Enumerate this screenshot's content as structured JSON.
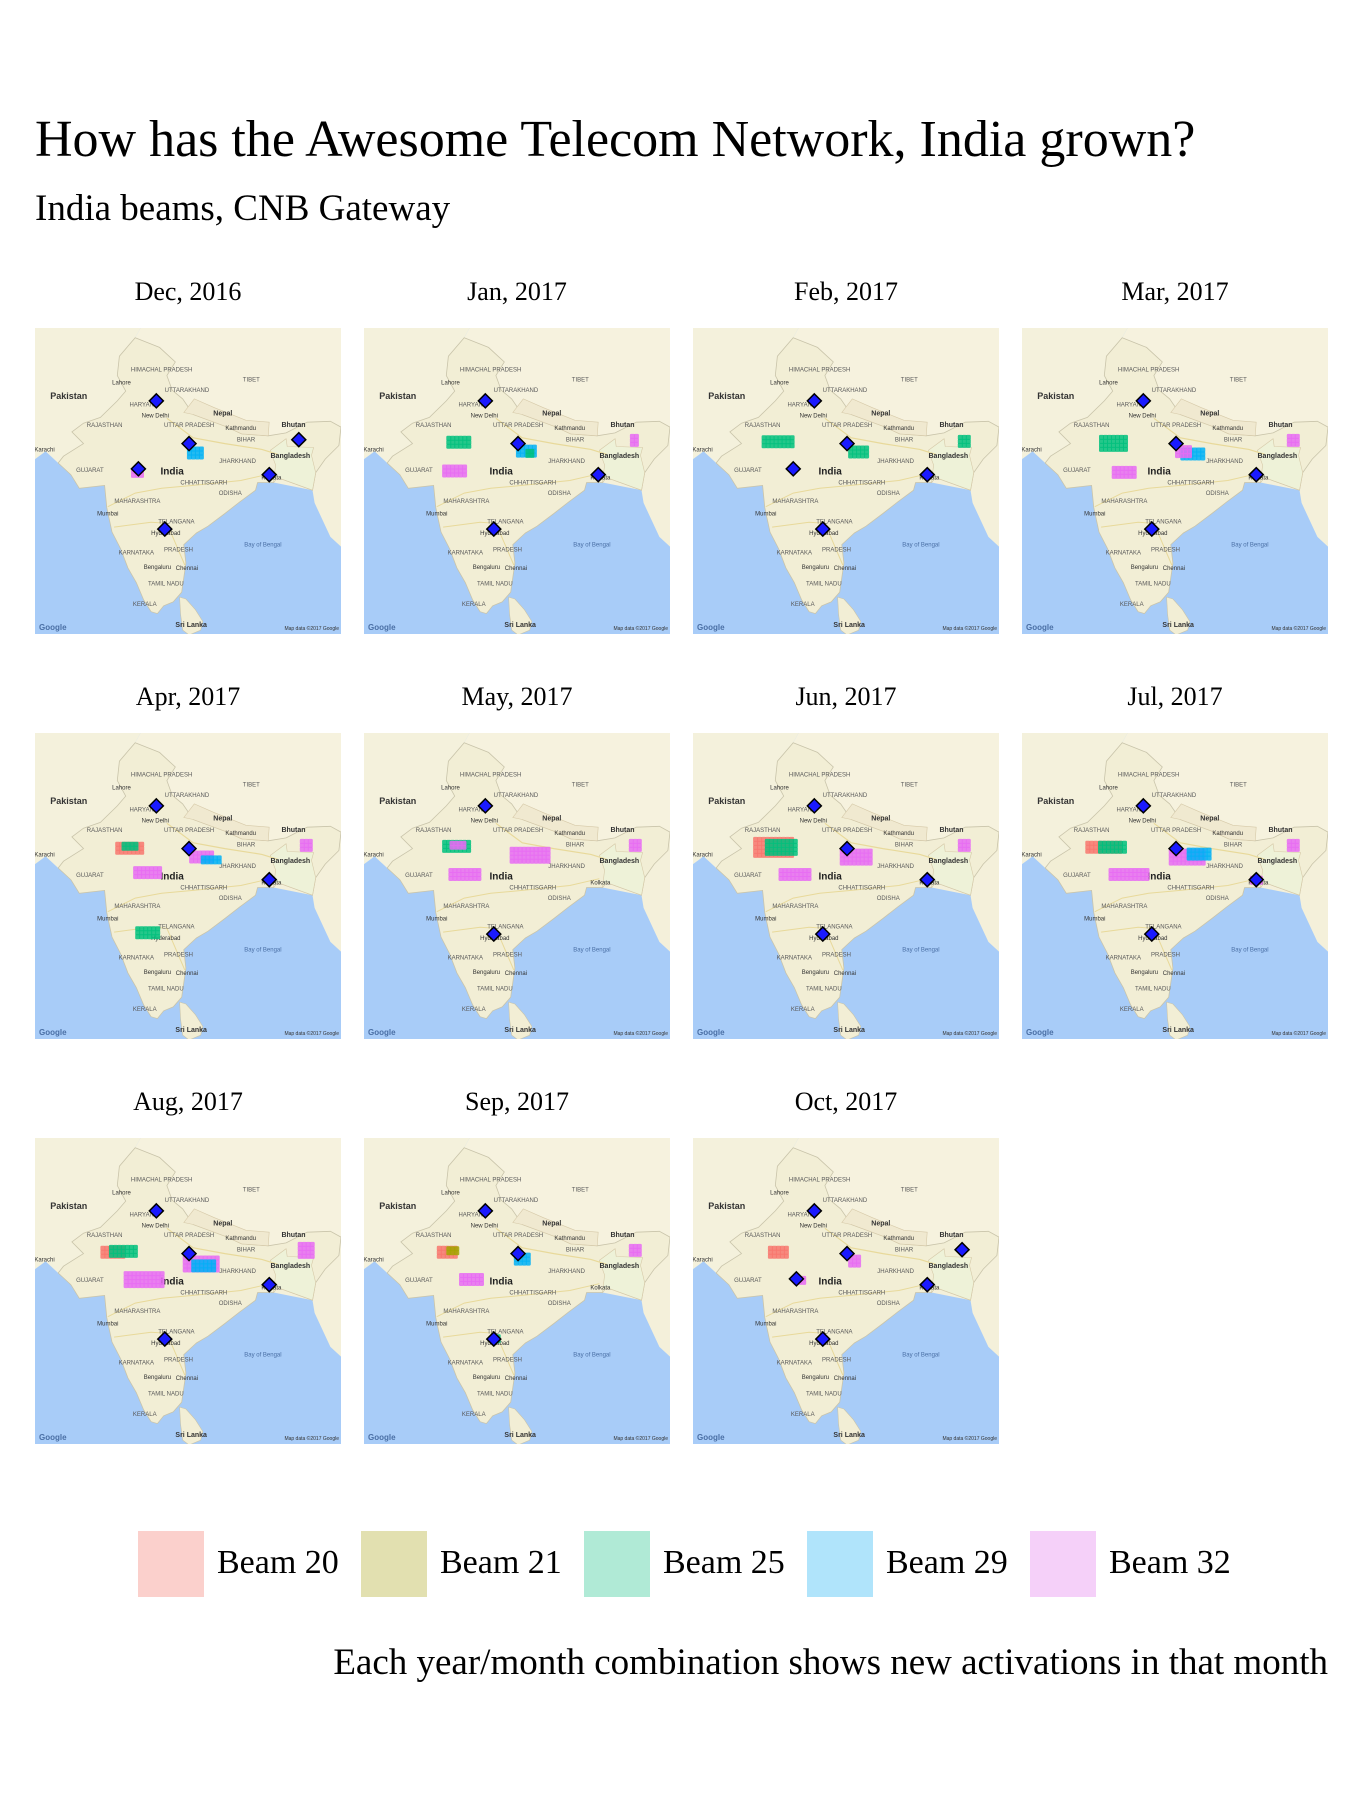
{
  "title": "How has the Awesome Telecom Network, India grown?",
  "subtitle": "India beams, CNB Gateway",
  "caption": "Each year/month combination shows new activations in that month",
  "colors": {
    "beam20": "#f8766d",
    "beam21": "#a3a500",
    "beam25": "#00bf7d",
    "beam29": "#00b0f6",
    "beam32": "#e76bf3",
    "gateway_fill": "#1a1aff",
    "ocean": "#a8ccf8",
    "land": "#f2eed5"
  },
  "map_labels": {
    "pakistan": "Pakistan",
    "india": "India",
    "nepal": "Nepal",
    "bhutan": "Bhutan",
    "bangladesh": "Bangladesh",
    "tibet": "TIBET",
    "sri_lanka": "Sri Lanka",
    "google": "Google",
    "attribution": "Map data ©2017 Google",
    "bay_of_bengal": "Bay of Bengal",
    "rajasthan": "RAJASTHAN",
    "gujarat": "GUJARAT",
    "maharashtra": "MAHARASHTRA",
    "karnataka": "KARNATAKA",
    "kerala": "KERALA",
    "tamil_nadu": "TAMIL NADU",
    "odisha": "ODISHA",
    "jharkhand": "JHARKHAND",
    "chhattisgarh": "CHHATTISGARH",
    "telangana": "TELANGANA",
    "andhra": "PRADESH",
    "bihar": "BIHAR",
    "uttar_pradesh": "UTTAR PRADESH",
    "haryana": "HARYANA",
    "uttarakhand": "UTTARAKHAND",
    "himachal": "HIMACHAL PRADESH",
    "new_delhi": "New Delhi",
    "kathmandu": "Kathmandu",
    "mumbai": "Mumbai",
    "hyderabad": "Hyderabad",
    "bengaluru": "Bengaluru",
    "chennai": "Chennai",
    "kolkata": "Kolkata",
    "lahore": "Lahore",
    "karachi": "Karachi"
  },
  "legend": [
    {
      "label": "Beam 20",
      "color": "#fbd0cc"
    },
    {
      "label": "Beam 21",
      "color": "#e2e0b0"
    },
    {
      "label": "Beam 25",
      "color": "#b0ead6"
    },
    {
      "label": "Beam 29",
      "color": "#b0e4fb"
    },
    {
      "label": "Beam 32",
      "color": "#f5d0f9"
    }
  ],
  "facets": [
    {
      "label": "Dec, 2016",
      "gateways": [
        [
          77.5,
          30.0
        ],
        [
          75.8,
          23.0
        ],
        [
          80.6,
          25.6
        ],
        [
          78.3,
          16.8
        ],
        [
          88.2,
          22.4
        ],
        [
          91.0,
          26.0
        ]
      ],
      "clusters": [
        [
          81.0,
          24.8,
          29,
          1.2,
          1.0
        ],
        [
          75.6,
          22.6,
          32,
          1.0,
          0.8
        ]
      ]
    },
    {
      "label": "Jan, 2017",
      "gateways": [
        [
          77.5,
          30.0
        ],
        [
          80.6,
          25.6
        ],
        [
          78.3,
          16.8
        ],
        [
          88.2,
          22.4
        ]
      ],
      "clusters": [
        [
          74.8,
          25.9,
          25,
          2.0,
          1.0
        ],
        [
          81.2,
          24.9,
          29,
          1.6,
          1.2
        ],
        [
          81.6,
          24.8,
          25,
          0.6,
          0.5
        ],
        [
          74.4,
          23.0,
          32,
          2.0,
          0.9
        ],
        [
          91.5,
          26.0,
          32,
          0.6,
          1.2
        ]
      ]
    },
    {
      "label": "Feb, 2017",
      "gateways": [
        [
          77.5,
          30.0
        ],
        [
          80.6,
          25.6
        ],
        [
          78.3,
          16.8
        ],
        [
          88.2,
          22.4
        ],
        [
          75.5,
          23.0
        ]
      ],
      "clusters": [
        [
          74.0,
          25.9,
          25,
          3.0,
          1.1
        ],
        [
          81.6,
          24.8,
          25,
          1.8,
          1.2
        ],
        [
          91.5,
          26.0,
          25,
          0.8,
          1.0
        ]
      ]
    },
    {
      "label": "Mar, 2017",
      "gateways": [
        [
          77.5,
          30.0
        ],
        [
          80.6,
          25.6
        ],
        [
          78.3,
          16.8
        ],
        [
          88.2,
          22.4
        ]
      ],
      "clusters": [
        [
          74.6,
          25.8,
          25,
          2.6,
          1.4
        ],
        [
          82.0,
          24.7,
          29,
          2.0,
          1.0
        ],
        [
          81.2,
          25.0,
          32,
          1.4,
          0.9
        ],
        [
          75.6,
          22.8,
          32,
          2.2,
          1.0
        ],
        [
          91.5,
          26.0,
          32,
          0.8,
          1.2
        ]
      ]
    },
    {
      "label": "Apr, 2017",
      "gateways": [
        [
          77.5,
          30.0
        ],
        [
          80.6,
          25.6
        ],
        [
          88.2,
          22.4
        ]
      ],
      "clusters": [
        [
          74.8,
          25.8,
          20,
          2.4,
          1.0
        ],
        [
          74.9,
          25.9,
          25,
          1.4,
          0.8
        ],
        [
          81.6,
          24.9,
          32,
          2.0,
          1.0
        ],
        [
          82.6,
          24.5,
          29,
          1.8,
          0.8
        ],
        [
          76.6,
          23.2,
          32,
          2.6,
          1.2
        ],
        [
          76.5,
          17.1,
          25,
          2.0,
          1.0
        ],
        [
          91.5,
          26.0,
          32,
          0.8,
          1.2
        ]
      ]
    },
    {
      "label": "May, 2017",
      "gateways": [
        [
          77.5,
          30.0
        ],
        [
          78.3,
          16.8
        ]
      ],
      "clusters": [
        [
          74.6,
          25.9,
          25,
          2.4,
          1.2
        ],
        [
          74.7,
          26.0,
          32,
          1.2,
          0.8
        ],
        [
          81.6,
          25.1,
          32,
          3.6,
          1.4
        ],
        [
          75.4,
          23.1,
          32,
          2.8,
          1.0
        ],
        [
          91.5,
          26.0,
          32,
          0.8,
          1.2
        ]
      ]
    },
    {
      "label": "Jun, 2017",
      "gateways": [
        [
          77.5,
          30.0
        ],
        [
          80.6,
          25.6
        ],
        [
          78.3,
          16.8
        ],
        [
          88.2,
          22.4
        ]
      ],
      "clusters": [
        [
          73.5,
          25.8,
          20,
          3.6,
          2.0
        ],
        [
          74.2,
          25.9,
          25,
          2.8,
          1.4
        ],
        [
          81.4,
          24.9,
          32,
          3.0,
          1.4
        ],
        [
          75.5,
          23.1,
          32,
          2.8,
          1.0
        ],
        [
          91.5,
          26.0,
          32,
          0.8,
          1.2
        ]
      ]
    },
    {
      "label": "Jul, 2017",
      "gateways": [
        [
          77.5,
          30.0
        ],
        [
          80.6,
          25.6
        ],
        [
          78.3,
          16.8
        ],
        [
          88.2,
          22.4
        ]
      ],
      "clusters": [
        [
          73.6,
          25.8,
          20,
          3.2,
          1.2
        ],
        [
          74.4,
          25.8,
          25,
          2.4,
          1.2
        ],
        [
          81.6,
          24.9,
          32,
          3.4,
          1.4
        ],
        [
          82.6,
          25.2,
          29,
          2.0,
          1.0
        ],
        [
          76.0,
          23.1,
          32,
          3.6,
          1.0
        ],
        [
          91.5,
          26.0,
          32,
          0.8,
          1.2
        ],
        [
          88.0,
          22.4,
          32,
          0.8,
          0.8
        ]
      ]
    },
    {
      "label": "Aug, 2017",
      "gateways": [
        [
          77.5,
          30.0
        ],
        [
          80.6,
          25.6
        ],
        [
          78.3,
          16.8
        ],
        [
          88.2,
          22.4
        ]
      ],
      "clusters": [
        [
          73.2,
          25.8,
          20,
          2.0,
          1.2
        ],
        [
          74.2,
          25.9,
          25,
          2.4,
          1.2
        ],
        [
          81.6,
          24.7,
          32,
          3.2,
          1.4
        ],
        [
          81.8,
          24.5,
          29,
          2.0,
          1.0
        ],
        [
          76.2,
          23.1,
          32,
          3.6,
          1.4
        ],
        [
          91.5,
          26.0,
          32,
          1.2,
          1.6
        ]
      ]
    },
    {
      "label": "Sep, 2017",
      "gateways": [
        [
          77.5,
          30.0
        ],
        [
          80.6,
          25.6
        ],
        [
          78.3,
          16.8
        ]
      ],
      "clusters": [
        [
          73.8,
          25.9,
          20,
          1.8,
          1.0
        ],
        [
          74.2,
          26.0,
          21,
          0.8,
          0.7
        ],
        [
          80.8,
          25.2,
          29,
          1.2,
          1.0
        ],
        [
          76.0,
          23.1,
          32,
          2.0,
          1.0
        ],
        [
          78.4,
          17.0,
          25,
          0.6,
          0.6
        ],
        [
          91.5,
          26.0,
          32,
          0.8,
          1.2
        ]
      ]
    },
    {
      "label": "Oct, 2017",
      "gateways": [
        [
          77.5,
          30.0
        ],
        [
          80.6,
          25.6
        ],
        [
          78.3,
          16.8
        ],
        [
          88.2,
          22.4
        ],
        [
          91.5,
          26.0
        ],
        [
          75.8,
          23.0
        ]
      ],
      "clusters": [
        [
          74.0,
          25.9,
          20,
          1.8,
          1.0
        ],
        [
          81.2,
          25.0,
          32,
          1.0,
          1.0
        ],
        [
          75.9,
          22.9,
          32,
          0.8,
          0.8
        ]
      ]
    }
  ]
}
